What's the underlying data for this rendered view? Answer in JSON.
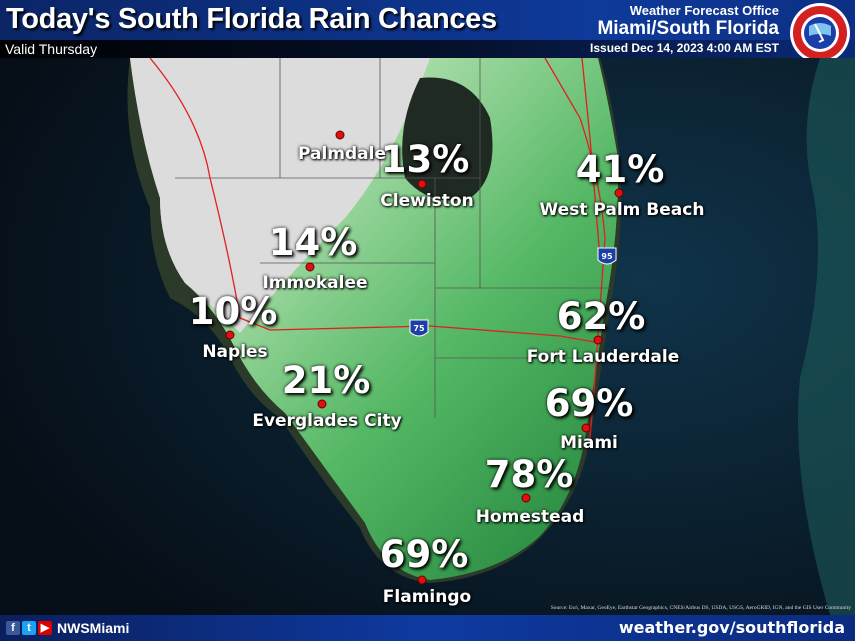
{
  "header": {
    "title": "Today's South Florida Rain Chances",
    "valid": "Valid Thursday",
    "office_line1": "Weather Forecast Office",
    "office_line2": "Miami/South Florida",
    "issued": "Issued Dec 14, 2023 4:00 AM EST",
    "logo_text": "NATIONAL WEATHER SERVICE"
  },
  "colors": {
    "header": "#0e3a9a",
    "low_chance_land": "#d9d9d9",
    "high_chance_land": "#2e9a4a",
    "city_dot": "#e01010",
    "roads": "#e02020"
  },
  "highway_shields": [
    "95",
    "75"
  ],
  "cities": [
    {
      "name": "Palmdale",
      "chance": ""
    },
    {
      "name": "Clewiston",
      "chance": "13%"
    },
    {
      "name": "West Palm Beach",
      "chance": "41%"
    },
    {
      "name": "Immokalee",
      "chance": "14%"
    },
    {
      "name": "Naples",
      "chance": "10%"
    },
    {
      "name": "Everglades City",
      "chance": "21%"
    },
    {
      "name": "Fort Lauderdale",
      "chance": "62%"
    },
    {
      "name": "Miami",
      "chance": "69%"
    },
    {
      "name": "Homestead",
      "chance": "78%"
    },
    {
      "name": "Flamingo",
      "chance": "69%"
    }
  ],
  "source": "Source: Esri, Maxar, GeoEye, Earthstar Geographics, CNES/Airbus DS, USDA, USGS, AeroGRID, IGN, and the GIS User Community",
  "footer": {
    "handle": "NWSMiami",
    "website": "weather.gov/southflorida",
    "social": [
      "f",
      "t",
      "▶"
    ]
  }
}
